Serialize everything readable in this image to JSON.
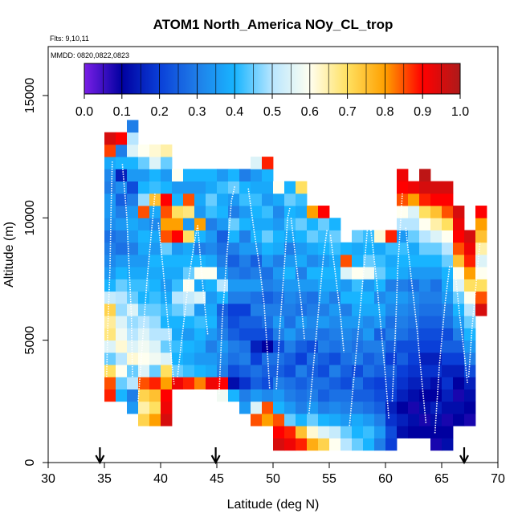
{
  "chart_data": {
    "type": "heatmap",
    "title": "ATOM1 North_America NOy_CL_trop",
    "info": [
      "Flts: 9,10,11",
      "MMDD: 0820,0822,0823"
    ],
    "xlabel": "Latitude (deg N)",
    "ylabel": "Altitude (m)",
    "xlim": [
      30,
      70
    ],
    "ylim": [
      0,
      17000
    ],
    "xticks": [
      "30",
      "35",
      "40",
      "45",
      "50",
      "55",
      "60",
      "65",
      "70"
    ],
    "yticks": [
      "0",
      "5000",
      "10000",
      "15000"
    ],
    "colorbar": {
      "ticks": [
        "0.0",
        "0.1",
        "0.2",
        "0.3",
        "0.4",
        "0.5",
        "0.6",
        "0.7",
        "0.8",
        "0.9",
        "1.0"
      ],
      "stops": [
        "#7a1fe6",
        "#0000a0",
        "#0a3fd8",
        "#1f7ee8",
        "#18b4ff",
        "#b8e6ff",
        "#fffff0",
        "#ffe060",
        "#ffa000",
        "#ff0000",
        "#ad1a1a"
      ]
    },
    "grid": false,
    "cell_size": {
      "lat": 1,
      "alt_m": 500
    },
    "markers_lat": [
      34.6,
      44.9,
      67.0
    ],
    "columns": [
      {
        "lat": 35.5,
        "alt_min": 2500,
        "values": [
          0.88,
          0.85,
          0.7,
          0.45,
          0.55,
          0.68,
          0.66,
          0.72,
          0.52,
          0.4,
          0.35,
          0.32,
          0.3,
          0.28,
          0.33,
          0.35,
          0.35,
          0.3,
          0.32,
          0.38,
          0.86,
          0.95
        ]
      },
      {
        "lat": 36.5,
        "alt_min": 2500,
        "values": [
          0.4,
          0.45,
          0.6,
          0.5,
          0.62,
          0.58,
          0.55,
          0.48,
          0.5,
          0.45,
          0.4,
          0.35,
          0.28,
          0.3,
          0.35,
          0.3,
          0.25,
          0.33,
          0.15,
          0.4,
          0.3,
          0.9
        ]
      },
      {
        "lat": 37.5,
        "alt_min": 2000,
        "values": [
          0.35,
          0.3,
          0.5,
          0.45,
          0.62,
          0.55,
          0.5,
          0.48,
          0.55,
          0.45,
          0.42,
          0.38,
          0.35,
          0.3,
          0.35,
          0.38,
          0.35,
          0.3,
          0.22,
          0.35,
          0.4,
          0.55,
          0.5,
          0.3
        ]
      },
      {
        "lat": 38.5,
        "alt_min": 1500,
        "values": [
          0.72,
          0.65,
          0.72,
          0.85,
          0.55,
          0.6,
          0.58,
          0.55,
          0.5,
          0.45,
          0.4,
          0.42,
          0.38,
          0.35,
          0.38,
          0.4,
          0.35,
          0.85,
          0.48,
          0.4,
          0.35,
          0.45,
          0.6
        ]
      },
      {
        "lat": 39.5,
        "alt_min": 1500,
        "values": [
          0.8,
          0.7,
          0.75,
          0.88,
          0.45,
          0.58,
          0.55,
          0.5,
          0.48,
          0.45,
          0.42,
          0.4,
          0.38,
          0.4,
          0.35,
          0.38,
          0.32,
          0.38,
          0.75,
          0.42,
          0.4,
          0.55,
          0.62
        ]
      },
      {
        "lat": 40.5,
        "alt_min": 1500,
        "values": [
          0.95,
          0.92,
          0.9,
          0.8,
          0.7,
          0.55,
          0.45,
          0.5,
          0.4,
          0.42,
          0.38,
          0.35,
          0.38,
          0.4,
          0.45,
          0.85,
          0.8,
          0.85,
          0.9,
          0.4,
          0.35,
          0.45,
          0.65
        ]
      },
      {
        "lat": 41.5,
        "alt_min": 3000,
        "values": [
          0.92,
          0.45,
          0.4,
          0.42,
          0.38,
          0.4,
          0.45,
          0.5,
          0.42,
          0.38,
          0.4,
          0.35,
          0.9,
          0.8,
          0.7,
          0.4,
          0.35,
          0.6
        ]
      },
      {
        "lat": 42.5,
        "alt_min": 3000,
        "values": [
          0.88,
          0.42,
          0.38,
          0.4,
          0.35,
          0.4,
          0.48,
          0.52,
          0.6,
          0.45,
          0.4,
          0.38,
          0.7,
          0.35,
          0.68,
          0.85,
          0.35,
          0.4
        ]
      },
      {
        "lat": 43.5,
        "alt_min": 3000,
        "values": [
          0.82,
          0.4,
          0.35,
          0.38,
          0.4,
          0.42,
          0.35,
          0.55,
          0.38,
          0.6,
          0.4,
          0.3,
          0.4,
          0.8,
          0.35,
          0.38,
          0.35,
          0.4
        ]
      },
      {
        "lat": 44.5,
        "alt_min": 3000,
        "values": [
          0.92,
          0.38,
          0.35,
          0.3,
          0.35,
          0.4,
          0.38,
          0.35,
          0.4,
          0.6,
          0.38,
          0.32,
          0.35,
          0.3,
          0.42,
          0.45,
          0.38,
          0.4
        ]
      },
      {
        "lat": 45.5,
        "alt_min": 2500,
        "values": [
          0.58,
          0.9,
          0.3,
          0.32,
          0.35,
          0.3,
          0.28,
          0.25,
          0.4,
          0.5,
          0.35,
          0.3,
          0.28,
          0.25,
          0.35,
          0.4,
          0.38,
          0.42,
          0.35
        ]
      },
      {
        "lat": 46.5,
        "alt_min": 2500,
        "values": [
          0.4,
          0.12,
          0.22,
          0.28,
          0.3,
          0.25,
          0.22,
          0.2,
          0.3,
          0.35,
          0.3,
          0.25,
          0.3,
          0.4,
          0.45,
          0.3,
          0.35,
          0.45,
          0.4
        ]
      },
      {
        "lat": 47.5,
        "alt_min": 2000,
        "values": [
          0.35,
          0.3,
          0.18,
          0.25,
          0.3,
          0.28,
          0.22,
          0.25,
          0.2,
          0.3,
          0.35,
          0.28,
          0.3,
          0.35,
          0.3,
          0.4,
          0.35,
          0.42,
          0.4,
          0.3
        ]
      },
      {
        "lat": 48.5,
        "alt_min": 1500,
        "values": [
          0.85,
          0.55,
          0.35,
          0.25,
          0.28,
          0.2,
          0.15,
          0.22,
          0.25,
          0.3,
          0.28,
          0.35,
          0.3,
          0.25,
          0.35,
          0.4,
          0.38,
          0.4,
          0.42,
          0.38,
          0.35,
          0.55
        ]
      },
      {
        "lat": 49.5,
        "alt_min": 1500,
        "values": [
          0.8,
          0.85,
          0.32,
          0.22,
          0.25,
          0.28,
          0.1,
          0.22,
          0.28,
          0.3,
          0.25,
          0.3,
          0.28,
          0.35,
          0.4,
          0.45,
          0.38,
          0.42,
          0.35,
          0.38,
          0.4,
          0.88
        ]
      },
      {
        "lat": 50.5,
        "alt_min": 500,
        "values": [
          0.95,
          0.9,
          0.85,
          0.4,
          0.35,
          0.3,
          0.25,
          0.28,
          0.22,
          0.3,
          0.35,
          0.3,
          0.28,
          0.32,
          0.35,
          0.3,
          0.38,
          0.4,
          0.35,
          0.32,
          0.38,
          0.6
        ]
      },
      {
        "lat": 51.5,
        "alt_min": 500,
        "values": [
          0.92,
          0.88,
          0.45,
          0.35,
          0.3,
          0.28,
          0.22,
          0.25,
          0.3,
          0.35,
          0.28,
          0.3,
          0.32,
          0.35,
          0.4,
          0.35,
          0.3,
          0.38,
          0.42,
          0.4,
          0.45,
          0.4
        ]
      },
      {
        "lat": 52.5,
        "alt_min": 500,
        "values": [
          0.88,
          0.75,
          0.4,
          0.3,
          0.28,
          0.25,
          0.3,
          0.2,
          0.25,
          0.3,
          0.35,
          0.28,
          0.3,
          0.35,
          0.3,
          0.38,
          0.35,
          0.4,
          0.45,
          0.38,
          0.42,
          0.7
        ]
      },
      {
        "lat": 53.5,
        "alt_min": 500,
        "values": [
          0.78,
          0.62,
          0.45,
          0.35,
          0.3,
          0.28,
          0.25,
          0.28,
          0.22,
          0.3,
          0.32,
          0.3,
          0.28,
          0.35,
          0.4,
          0.32,
          0.38,
          0.45,
          0.4,
          0.8
        ]
      },
      {
        "lat": 54.5,
        "alt_min": 500,
        "values": [
          0.72,
          0.55,
          0.4,
          0.3,
          0.25,
          0.28,
          0.22,
          0.25,
          0.3,
          0.28,
          0.35,
          0.3,
          0.35,
          0.38,
          0.4,
          0.35,
          0.4,
          0.42,
          0.45,
          0.9
        ]
      },
      {
        "lat": 55.5,
        "alt_min": 500,
        "values": [
          0.6,
          0.52,
          0.38,
          0.32,
          0.28,
          0.25,
          0.3,
          0.22,
          0.28,
          0.3,
          0.32,
          0.35,
          0.3,
          0.38,
          0.4,
          0.38,
          0.42,
          0.45,
          0.4
        ]
      },
      {
        "lat": 56.5,
        "alt_min": 500,
        "values": [
          0.5,
          0.45,
          0.35,
          0.3,
          0.28,
          0.22,
          0.25,
          0.28,
          0.3,
          0.32,
          0.35,
          0.3,
          0.4,
          0.35,
          0.55,
          0.85,
          0.4
        ]
      },
      {
        "lat": 57.5,
        "alt_min": 500,
        "values": [
          0.45,
          0.4,
          0.38,
          0.3,
          0.25,
          0.28,
          0.22,
          0.3,
          0.28,
          0.3,
          0.35,
          0.38,
          0.4,
          0.42,
          0.6,
          0.4,
          0.38,
          0.45
        ]
      },
      {
        "lat": 58.5,
        "alt_min": 500,
        "values": [
          0.4,
          0.42,
          0.35,
          0.28,
          0.25,
          0.22,
          0.28,
          0.25,
          0.3,
          0.35,
          0.32,
          0.38,
          0.4,
          0.35,
          0.58,
          0.45,
          0.4,
          0.42
        ]
      },
      {
        "lat": 59.5,
        "alt_min": 500,
        "values": [
          0.3,
          0.35,
          0.3,
          0.25,
          0.22,
          0.2,
          0.25,
          0.28,
          0.3,
          0.25,
          0.35,
          0.38,
          0.32,
          0.4,
          0.45,
          0.42,
          0.38,
          0.62
        ]
      },
      {
        "lat": 60.5,
        "alt_min": 500,
        "values": [
          0.2,
          0.22,
          0.18,
          0.15,
          0.2,
          0.22,
          0.25,
          0.2,
          0.25,
          0.3,
          0.28,
          0.32,
          0.35,
          0.3,
          0.4,
          0.38,
          0.42,
          0.88
        ]
      },
      {
        "lat": 61.5,
        "alt_min": 1000,
        "values": [
          0.12,
          0.15,
          0.1,
          0.15,
          0.18,
          0.2,
          0.25,
          0.22,
          0.28,
          0.3,
          0.32,
          0.35,
          0.3,
          0.38,
          0.4,
          0.42,
          0.35,
          0.5,
          0.6,
          0.85,
          0.9,
          0.92
        ]
      },
      {
        "lat": 62.5,
        "alt_min": 1000,
        "values": [
          0.1,
          0.12,
          0.08,
          0.12,
          0.15,
          0.18,
          0.2,
          0.22,
          0.25,
          0.28,
          0.3,
          0.32,
          0.28,
          0.35,
          0.4,
          0.38,
          0.45,
          0.5,
          0.55,
          0.8,
          0.92
        ]
      },
      {
        "lat": 63.5,
        "alt_min": 1000,
        "values": [
          0.1,
          0.08,
          0.12,
          0.1,
          0.15,
          0.18,
          0.15,
          0.2,
          0.22,
          0.25,
          0.28,
          0.3,
          0.32,
          0.35,
          0.4,
          0.45,
          0.5,
          0.6,
          0.7,
          0.88,
          0.95,
          0.98
        ]
      },
      {
        "lat": 64.5,
        "alt_min": 500,
        "values": [
          0.08,
          0.1,
          0.12,
          0.15,
          0.1,
          0.12,
          0.18,
          0.15,
          0.2,
          0.22,
          0.25,
          0.28,
          0.3,
          0.28,
          0.35,
          0.4,
          0.45,
          0.55,
          0.65,
          0.75,
          0.9,
          0.95
        ]
      },
      {
        "lat": 65.5,
        "alt_min": 500,
        "values": [
          0.12,
          0.1,
          0.08,
          0.12,
          0.15,
          0.18,
          0.15,
          0.2,
          0.25,
          0.22,
          0.28,
          0.3,
          0.35,
          0.38,
          0.4,
          0.45,
          0.5,
          0.6,
          0.7,
          0.85,
          0.9,
          0.95
        ]
      },
      {
        "lat": 66.5,
        "alt_min": 1500,
        "values": [
          0.1,
          0.12,
          0.08,
          0.1,
          0.15,
          0.2,
          0.25,
          0.3,
          0.35,
          0.4,
          0.45,
          0.55,
          0.6,
          0.75,
          0.85,
          0.9,
          0.92,
          0.95
        ]
      },
      {
        "lat": 67.5,
        "alt_min": 1500,
        "values": [
          0.08,
          0.1,
          0.12,
          0.15,
          0.22,
          0.3,
          0.35,
          0.4,
          0.45,
          0.5,
          0.6,
          0.7,
          0.8,
          0.88,
          0.92,
          0.95
        ]
      },
      {
        "lat": 68.5,
        "alt_min": 6000,
        "values": [
          0.95,
          0.85,
          0.7,
          0.6,
          0.55,
          0.65,
          0.75,
          0.8,
          0.9
        ]
      }
    ],
    "flight_tracks": [
      [
        [
          35.2,
          3500
        ],
        [
          35.3,
          5500
        ],
        [
          35.5,
          8000
        ],
        [
          35.6,
          10500
        ],
        [
          35.7,
          12300
        ]
      ],
      [
        [
          36.6,
          12200
        ],
        [
          37.0,
          10000
        ],
        [
          37.2,
          8000
        ],
        [
          37.4,
          6000
        ],
        [
          37.5,
          3500
        ]
      ],
      [
        [
          38.0,
          2500
        ],
        [
          38.4,
          5000
        ],
        [
          38.8,
          7500
        ],
        [
          39.2,
          9500
        ],
        [
          39.5,
          11000
        ]
      ],
      [
        [
          39.8,
          9800
        ],
        [
          40.2,
          8000
        ],
        [
          40.6,
          6000
        ],
        [
          40.9,
          4500
        ],
        [
          41.2,
          3200
        ]
      ],
      [
        [
          41.5,
          3500
        ],
        [
          42.0,
          5500
        ],
        [
          42.5,
          7500
        ],
        [
          43.0,
          9000
        ],
        [
          43.3,
          9700
        ]
      ],
      [
        [
          43.3,
          9700
        ],
        [
          43.6,
          8000
        ],
        [
          43.9,
          6500
        ],
        [
          44.2,
          5200
        ]
      ],
      [
        [
          45.2,
          2800
        ],
        [
          45.5,
          6000
        ],
        [
          45.9,
          8500
        ],
        [
          46.3,
          10700
        ],
        [
          46.6,
          11300
        ]
      ],
      [
        [
          47.8,
          11200
        ],
        [
          48.3,
          9500
        ],
        [
          48.8,
          8000
        ],
        [
          49.2,
          6500
        ],
        [
          49.5,
          4500
        ],
        [
          49.7,
          3000
        ]
      ],
      [
        [
          50.3,
          3000
        ],
        [
          50.6,
          5500
        ],
        [
          51.0,
          8000
        ],
        [
          51.3,
          10000
        ],
        [
          51.5,
          10400
        ]
      ],
      [
        [
          51.6,
          10000
        ],
        [
          52.1,
          8000
        ],
        [
          52.5,
          6500
        ],
        [
          52.8,
          5000
        ]
      ],
      [
        [
          53.2,
          2000
        ],
        [
          53.7,
          4500
        ],
        [
          54.1,
          6500
        ],
        [
          54.5,
          8500
        ],
        [
          54.8,
          9500
        ]
      ],
      [
        [
          55.1,
          9300
        ],
        [
          55.6,
          7500
        ],
        [
          56.0,
          6000
        ],
        [
          56.3,
          4500
        ]
      ],
      [
        [
          56.8,
          1500
        ],
        [
          57.3,
          4000
        ],
        [
          57.8,
          6500
        ],
        [
          58.2,
          8500
        ],
        [
          58.4,
          9600
        ]
      ],
      [
        [
          58.7,
          9500
        ],
        [
          59.2,
          7500
        ],
        [
          59.6,
          5500
        ],
        [
          60.0,
          3500
        ],
        [
          60.3,
          1800
        ]
      ],
      [
        [
          60.6,
          2500
        ],
        [
          60.9,
          5500
        ],
        [
          61.1,
          8000
        ],
        [
          61.3,
          9500
        ],
        [
          61.5,
          11000
        ]
      ],
      [
        [
          61.8,
          9600
        ],
        [
          62.3,
          7500
        ],
        [
          62.8,
          5500
        ],
        [
          63.2,
          3500
        ],
        [
          63.6,
          1600
        ]
      ],
      [
        [
          64.4,
          1200
        ],
        [
          64.8,
          4000
        ],
        [
          65.3,
          6500
        ],
        [
          65.7,
          8000
        ],
        [
          66.0,
          8000
        ]
      ],
      [
        [
          66.2,
          7800
        ],
        [
          66.6,
          6000
        ],
        [
          67.0,
          4500
        ],
        [
          67.3,
          3200
        ]
      ],
      [
        [
          67.4,
          3500
        ],
        [
          67.7,
          5500
        ],
        [
          68.1,
          7500
        ],
        [
          68.4,
          9000
        ]
      ]
    ]
  }
}
